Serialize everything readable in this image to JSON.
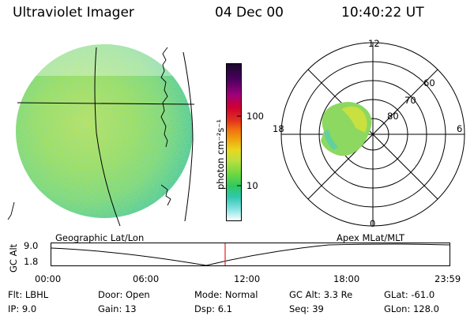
{
  "header": {
    "title": "Ultraviolet Imager",
    "date": "04 Dec 00",
    "time": "10:40:22 UT"
  },
  "colorbar": {
    "unit_label": "photon cm⁻²s⁻¹",
    "ticks": [
      "100",
      "10"
    ],
    "colors": [
      "#1a0a2a",
      "#4a0060",
      "#a0007a",
      "#d00030",
      "#e03020",
      "#f07010",
      "#f0a010",
      "#e8d820",
      "#b8e040",
      "#70d840",
      "#30c860",
      "#30c8b0",
      "#80e0e0",
      "#ffffff"
    ]
  },
  "polar_plot": {
    "mlt_labels": {
      "top": "12",
      "left": "18",
      "right": "6",
      "bottom": "0"
    },
    "lat_labels": [
      "60",
      "70",
      "80"
    ]
  },
  "timeline": {
    "left_title": "Geographic Lat/Lon",
    "right_title": "Apex MLat/MLT",
    "axis_label": "GC Alt",
    "y_ticks": [
      "9.0",
      "1.8"
    ],
    "x_ticks": [
      "00:00",
      "06:00",
      "12:00",
      "18:00",
      "23:59"
    ],
    "current_marker_color": "#dd2222"
  },
  "info": [
    {
      "key": "Flt:",
      "val": "LBHL"
    },
    {
      "key": "IP:",
      "val": "9.0"
    },
    {
      "key": "Door:",
      "val": "Open"
    },
    {
      "key": "Gain:",
      "val": "13"
    },
    {
      "key": "Mode:",
      "val": "Normal"
    },
    {
      "key": "Dsp:",
      "val": "6.1"
    },
    {
      "key": "GC Alt:",
      "val": "3.3 Re"
    },
    {
      "key": "Seq:",
      "val": "39"
    },
    {
      "key": "GLat:",
      "val": "-61.0"
    },
    {
      "key": "GLon:",
      "val": "128.0"
    }
  ]
}
